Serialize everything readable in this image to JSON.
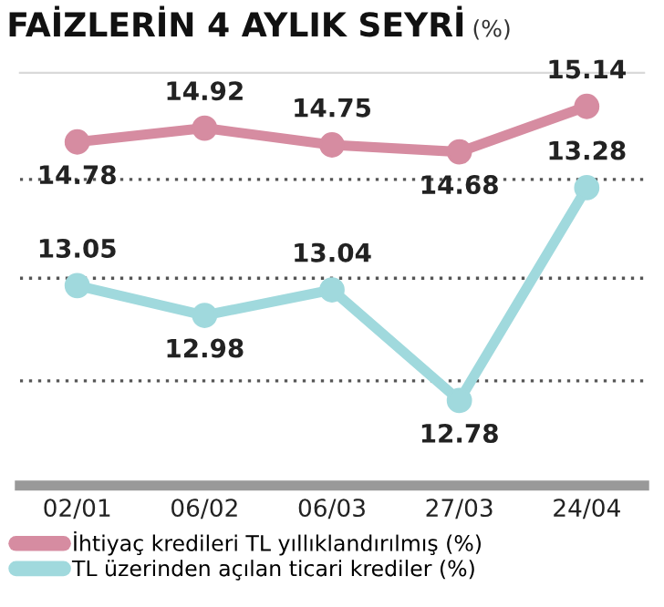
{
  "chart_data": {
    "type": "line",
    "title": "FAİZLERİN 4 AYLIK SEYRİ",
    "subtitle": "(%)",
    "categories": [
      "02/01",
      "06/02",
      "06/03",
      "27/03",
      "24/04"
    ],
    "series": [
      {
        "name": "İhtiyaç kredileri TL yıllıklandırılmış (%)",
        "color": "#d68ca1",
        "values": [
          14.78,
          14.92,
          14.75,
          14.68,
          15.14
        ]
      },
      {
        "name": "TL üzerinden açılan ticari krediler (%)",
        "color": "#a0d9dd",
        "values": [
          13.05,
          12.98,
          13.04,
          12.78,
          13.28
        ],
        "axis": "y2"
      }
    ],
    "ylim": [
      11.3,
      15.48
    ],
    "yticks": [
      {
        "value": 12.36,
        "label": null
      },
      {
        "value": 13.4,
        "label": null
      },
      {
        "value": 14.4,
        "label": null
      }
    ],
    "y2lim": [
      12.58,
      13.55
    ],
    "grid": "y",
    "tick_labels": "x",
    "data_labels": true,
    "marker": "circle",
    "line_style": "solid",
    "legend": "bottom"
  }
}
